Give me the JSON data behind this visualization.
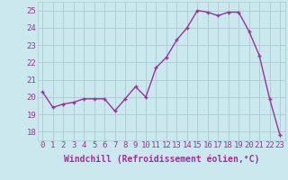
{
  "x": [
    0,
    1,
    2,
    3,
    4,
    5,
    6,
    7,
    8,
    9,
    10,
    11,
    12,
    13,
    14,
    15,
    16,
    17,
    18,
    19,
    20,
    21,
    22,
    23
  ],
  "y": [
    20.3,
    19.4,
    19.6,
    19.7,
    19.9,
    19.9,
    19.9,
    19.2,
    19.9,
    20.6,
    20.0,
    21.7,
    22.3,
    23.3,
    24.0,
    25.0,
    24.9,
    24.7,
    24.9,
    24.9,
    23.8,
    22.4,
    19.9,
    17.8
  ],
  "line_color": "#993399",
  "marker": "+",
  "bg_color": "#cce8ef",
  "grid_color": "#aacccc",
  "xlabel": "Windchill (Refroidissement éolien,°C)",
  "ylim": [
    17.5,
    25.5
  ],
  "xlim": [
    -0.5,
    23.5
  ],
  "yticks": [
    18,
    19,
    20,
    21,
    22,
    23,
    24,
    25
  ],
  "xticks": [
    0,
    1,
    2,
    3,
    4,
    5,
    6,
    7,
    8,
    9,
    10,
    11,
    12,
    13,
    14,
    15,
    16,
    17,
    18,
    19,
    20,
    21,
    22,
    23
  ],
  "xlabel_fontsize": 7,
  "tick_fontsize": 6.5,
  "line_width": 1.0,
  "marker_size": 3.5,
  "fig_width": 3.2,
  "fig_height": 2.0,
  "dpi": 100
}
